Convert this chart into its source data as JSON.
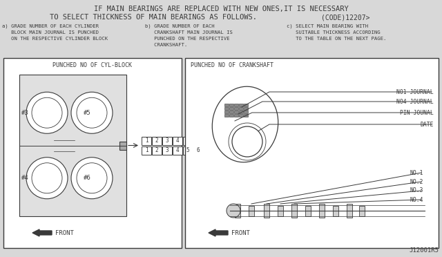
{
  "bg_color": "#d8d8d8",
  "diagram_bg": "#ffffff",
  "line_color": "#3a3a3a",
  "title_line1": "IF MAIN BEARINGS ARE REPLACED WITH NEW ONES,IT IS NECESSARY",
  "title_line2": "TO SELECT THICKNESS OF MAIN BEARINGS AS FOLLOWS.",
  "code_text": "(CODE)12207>",
  "subtitle_a": "a) GRADE NUMBER OF EACH CYLINDER\n   BLOCK MAIN JOURNAL IS PUNCHED\n   ON THE RESPECTIVE CYLINDER BLOCK",
  "subtitle_b": "b) GRADE NUMBER OF EACH\n   CRANKSHAFT MAIN JOURNAL IS\n   PUNCHED ON THE RESPECTIVE\n   CRANKSHAFT.",
  "subtitle_c": "c) SELECT MAIN BEARING WITH\n   SUITABLE THICKNESS ACCORDING\n   TO THE TABLE ON THE NEXT PAGE.",
  "left_box_title": "PUNCHED NO OF CYL-BLOCK",
  "right_box_title": "PUNCHED NO OF CRANKSHAFT",
  "label_no1_journal": "NO1 JOURNAL",
  "label_no4_journal": "NO4 JOURNAL",
  "label_pin_journal": "PIN JOUNAL",
  "label_date": "DATE",
  "label_no1": "NO.1",
  "label_no2": "NO.2",
  "label_no3": "NO.3",
  "label_no4": "NO.4",
  "label_front_left": "FRONT",
  "label_front_right": "FRONT",
  "label_3": "#3",
  "label_4": "#4",
  "label_5": "#5",
  "label_6": "#6",
  "footer": "J12001R5"
}
